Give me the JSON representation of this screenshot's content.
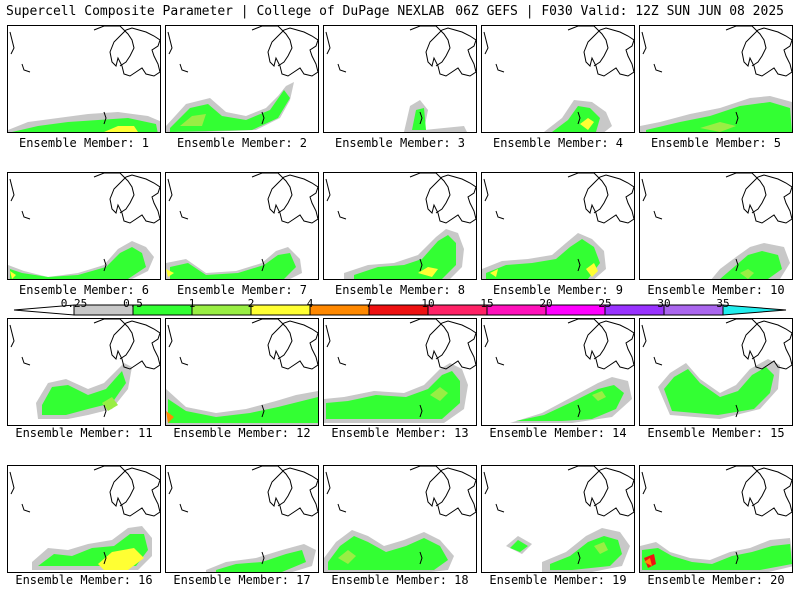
{
  "header": {
    "left": "Supercell Composite Parameter | College of DuPage NEXLAB",
    "right": "06Z GEFS | F030 Valid: 12Z SUN JUN 08 2025"
  },
  "panels": [
    "Ensemble Member: 1",
    "Ensemble Member: 2",
    "Ensemble Member: 3",
    "Ensemble Member: 4",
    "Ensemble Member: 5",
    "Ensemble Member: 6",
    "Ensemble Member: 7",
    "Ensemble Member: 8",
    "Ensemble Member: 9",
    "Ensemble Member: 10",
    "Ensemble Member: 11",
    "Ensemble Member: 12",
    "Ensemble Member: 13",
    "Ensemble Member: 14",
    "Ensemble Member: 15",
    "Ensemble Member: 16",
    "Ensemble Member: 17",
    "Ensemble Member: 18",
    "Ensemble Member: 19",
    "Ensemble Member: 20"
  ],
  "colorbar": {
    "levels": [
      "0.25",
      "0.5",
      "1",
      "2",
      "4",
      "7",
      "10",
      "15",
      "20",
      "25",
      "30",
      "35"
    ],
    "colors": [
      "#c8c8c8",
      "#33ff33",
      "#99ee44",
      "#ffff33",
      "#ff8800",
      "#ee1111",
      "#ff2266",
      "#ff11bb",
      "#ff00ff",
      "#9933ff",
      "#aa66ee",
      "#22eeee"
    ]
  },
  "legend_colors": {
    "gray": "#c8c8c8",
    "green": "#33ff33",
    "lightgreen": "#99ee44",
    "yellow": "#ffff33"
  }
}
